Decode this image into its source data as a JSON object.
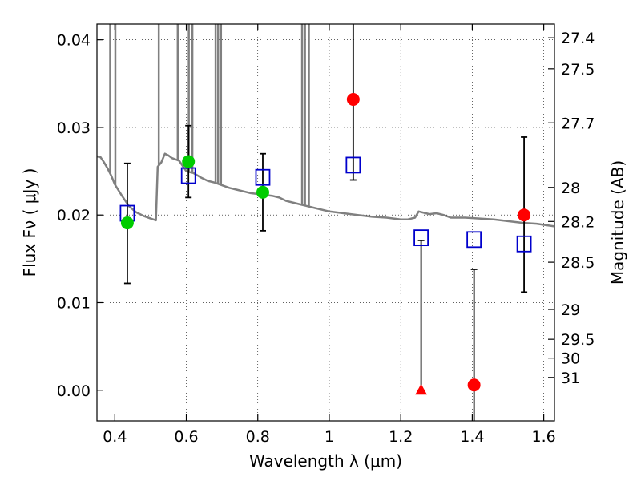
{
  "chart_data": {
    "type": "scatter",
    "xlabel": "Wavelength  λ (μm)",
    "ylabel": "Flux  Fν  ( μJy )",
    "ylabel_right": "Magnitude (AB)",
    "xlim": [
      0.35,
      1.63
    ],
    "ylim": [
      -0.0035,
      0.0418
    ],
    "grid": true,
    "x_ticks": [
      0.4,
      0.6,
      0.8,
      1.0,
      1.2,
      1.4,
      1.6
    ],
    "x_tick_labels": [
      "0.4",
      "0.6",
      "0.8",
      "1",
      "1.2",
      "1.4",
      "1.6"
    ],
    "y_ticks": [
      0.0,
      0.01,
      0.02,
      0.03,
      0.04
    ],
    "y_tick_labels": [
      "0.00",
      "0.01",
      "0.02",
      "0.03",
      "0.04"
    ],
    "right_ticks": [
      {
        "label": "27.4",
        "flux": 0.04023
      },
      {
        "label": "27.5",
        "flux": 0.03669
      },
      {
        "label": "27.7",
        "flux": 0.03052
      },
      {
        "label": "28",
        "flux": 0.02315
      },
      {
        "label": "28.2",
        "flux": 0.01926
      },
      {
        "label": "28.5",
        "flux": 0.01461
      },
      {
        "label": "29",
        "flux": 0.00922
      },
      {
        "label": "29.5",
        "flux": 0.00582
      },
      {
        "label": "30",
        "flux": 0.00367
      },
      {
        "label": "31",
        "flux": 0.00146
      }
    ],
    "series": [
      {
        "marker": "open-square",
        "color": "#0000cc",
        "points": [
          {
            "x": 0.435,
            "y": 0.0202,
            "err": 0.0068
          },
          {
            "x": 0.606,
            "y": 0.0245,
            "err": 0.0022
          },
          {
            "x": 0.814,
            "y": 0.0243,
            "err": 0.0044
          },
          {
            "x": 1.067,
            "y": 0.0257,
            "err": 0.0016
          },
          {
            "x": 1.257,
            "y": 0.0174,
            "err": 0.0174
          },
          {
            "x": 1.405,
            "y": 0.0172,
            "err": 0.0034
          },
          {
            "x": 1.545,
            "y": 0.0167,
            "err": 0.0055
          }
        ]
      },
      {
        "marker": "filled-circle",
        "color": "#00cc00",
        "points": [
          {
            "x": 0.435,
            "y": 0.0191
          },
          {
            "x": 0.606,
            "y": 0.0261
          },
          {
            "x": 0.814,
            "y": 0.0226
          }
        ]
      },
      {
        "marker": "filled-circle",
        "color": "#ff0000",
        "points": [
          {
            "x": 1.067,
            "y": 0.0332
          },
          {
            "x": 1.405,
            "y": 0.0006
          },
          {
            "x": 1.545,
            "y": 0.02
          }
        ]
      },
      {
        "marker": "triangle",
        "color": "#ff0000",
        "points": [
          {
            "x": 1.257,
            "y": 0.0
          }
        ]
      }
    ],
    "error_bars": [
      {
        "x": 0.435,
        "low": 0.0122,
        "high": 0.0259
      },
      {
        "x": 0.606,
        "low": 0.022,
        "high": 0.0302
      },
      {
        "x": 0.814,
        "low": 0.0182,
        "high": 0.027
      },
      {
        "x": 1.067,
        "low": 0.024,
        "high": 0.0418
      },
      {
        "x": 1.257,
        "low": 0.0,
        "high": 0.0171
      },
      {
        "x": 1.405,
        "low": -0.0035,
        "high": 0.0138
      },
      {
        "x": 1.545,
        "low": 0.0112,
        "high": 0.0289
      }
    ],
    "model_spectrum": {
      "color": "#808080",
      "x": [
        0.35,
        0.36,
        0.37,
        0.38,
        0.39,
        0.4,
        0.42,
        0.44,
        0.46,
        0.48,
        0.5,
        0.515,
        0.52,
        0.53,
        0.54,
        0.55,
        0.56,
        0.58,
        0.6,
        0.62,
        0.64,
        0.66,
        0.68,
        0.7,
        0.72,
        0.74,
        0.76,
        0.78,
        0.8,
        0.82,
        0.84,
        0.86,
        0.88,
        0.9,
        0.92,
        0.94,
        0.96,
        1.0,
        1.04,
        1.08,
        1.12,
        1.16,
        1.2,
        1.22,
        1.24,
        1.25,
        1.26,
        1.28,
        1.3,
        1.32,
        1.34,
        1.38,
        1.42,
        1.46,
        1.5,
        1.54,
        1.58,
        1.63
      ],
      "y": [
        0.0267,
        0.0266,
        0.026,
        0.0253,
        0.0245,
        0.0235,
        0.0222,
        0.021,
        0.0203,
        0.0199,
        0.0196,
        0.0194,
        0.0255,
        0.026,
        0.027,
        0.0268,
        0.0265,
        0.0262,
        0.025,
        0.0248,
        0.0243,
        0.0239,
        0.0237,
        0.0234,
        0.0231,
        0.0229,
        0.0227,
        0.0225,
        0.0224,
        0.0223,
        0.0222,
        0.022,
        0.0216,
        0.0214,
        0.0212,
        0.021,
        0.0208,
        0.0204,
        0.0202,
        0.02,
        0.0198,
        0.0197,
        0.0195,
        0.0195,
        0.0197,
        0.0204,
        0.0203,
        0.0201,
        0.0202,
        0.02,
        0.0197,
        0.0197,
        0.0196,
        0.0195,
        0.0193,
        0.0191,
        0.019,
        0.0187
      ]
    },
    "spikes": [
      {
        "x": 0.387
      },
      {
        "x": 0.4015
      },
      {
        "x": 0.523
      },
      {
        "x": 0.576
      },
      {
        "x": 0.607
      },
      {
        "x": 0.617
      },
      {
        "x": 0.682
      },
      {
        "x": 0.689
      },
      {
        "x": 0.697
      },
      {
        "x": 0.924
      },
      {
        "x": 0.932
      },
      {
        "x": 0.943
      }
    ]
  }
}
